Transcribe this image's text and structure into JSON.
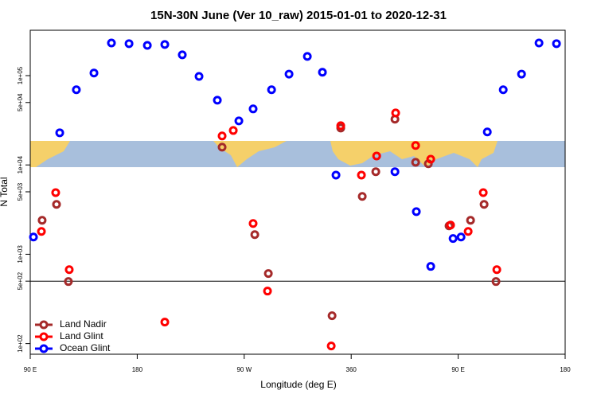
{
  "chart_data": {
    "type": "scatter",
    "title": "15N-30N June (Ver 10_raw)   2015-01-01 to 2020-12-31",
    "x_label": "Longitude (deg E)",
    "y_label": "N Total",
    "log_y": true,
    "xlim": [
      90,
      540
    ],
    "xticks": [
      {
        "value": 90,
        "label": "90 E"
      },
      180,
      {
        "value": 270,
        "label": "90 W"
      },
      360,
      {
        "value": 450,
        "label": "90 E"
      },
      {
        "value": 540,
        "label": "180"
      }
    ],
    "ylim": [
      76,
      322000
    ],
    "yticks": [
      {
        "value": 100,
        "label": "1e+02"
      },
      {
        "value": 500,
        "label": "5e+02"
      },
      {
        "value": 1000,
        "label": "1e+03"
      },
      {
        "value": 5000,
        "label": "5e+03"
      },
      {
        "value": 10000,
        "label": "1e+04"
      },
      {
        "value": 50000,
        "label": "5e+04"
      },
      {
        "value": 100000,
        "label": "1e+05"
      }
    ],
    "hline": 500,
    "legend": "bottom-left",
    "series": [
      {
        "name": "Land Nadir",
        "color": "#a52a2a",
        "x": [
          100.0,
          112.1,
          122.1,
          251.4,
          278.9,
          290.3,
          343.9,
          351.2,
          369.3,
          380.7,
          396.8,
          414.2,
          424.9,
          442.3,
          460.4,
          471.8,
          481.8
        ],
        "values": [
          2400,
          3620,
          495,
          15800,
          1660,
          608,
          205,
          25900,
          4440,
          8400,
          32500,
          10700,
          10300,
          2080,
          2400,
          3620,
          495
        ]
      },
      {
        "name": "Land Glint",
        "color": "#ff0000",
        "x": [
          99.4,
          111.4,
          122.8,
          203.2,
          251.4,
          260.8,
          277.5,
          289.6,
          343.2,
          351.2,
          368.6,
          381.4,
          397.4,
          414.2,
          426.9,
          443.6,
          458.4,
          471.1,
          482.5
        ],
        "values": [
          1800,
          4900,
          673,
          174,
          21100,
          24300,
          2210,
          387,
          94,
          27500,
          7700,
          12600,
          38200,
          16500,
          11600,
          2120,
          1800,
          4900,
          673
        ]
      },
      {
        "name": "Ocean Glint",
        "color": "#0000ff",
        "x": [
          92.7,
          114.8,
          128.8,
          143.6,
          158.3,
          173.1,
          188.5,
          203.2,
          217.9,
          232,
          247.4,
          265.5,
          277.5,
          293,
          307.7,
          323.1,
          335.8,
          347.2,
          396.8,
          414.8,
          426.9,
          445.7,
          452.4,
          474.5,
          487.9,
          503.3,
          518,
          532.7
        ],
        "values": [
          1560,
          22900,
          69400,
          107000,
          232000,
          228000,
          218000,
          223000,
          171000,
          98000,
          53100,
          31100,
          42400,
          69400,
          104000,
          164000,
          109000,
          7700,
          8400,
          3000,
          731,
          1500,
          1560,
          23400,
          69400,
          104000,
          232000,
          228000
        ]
      }
    ]
  }
}
